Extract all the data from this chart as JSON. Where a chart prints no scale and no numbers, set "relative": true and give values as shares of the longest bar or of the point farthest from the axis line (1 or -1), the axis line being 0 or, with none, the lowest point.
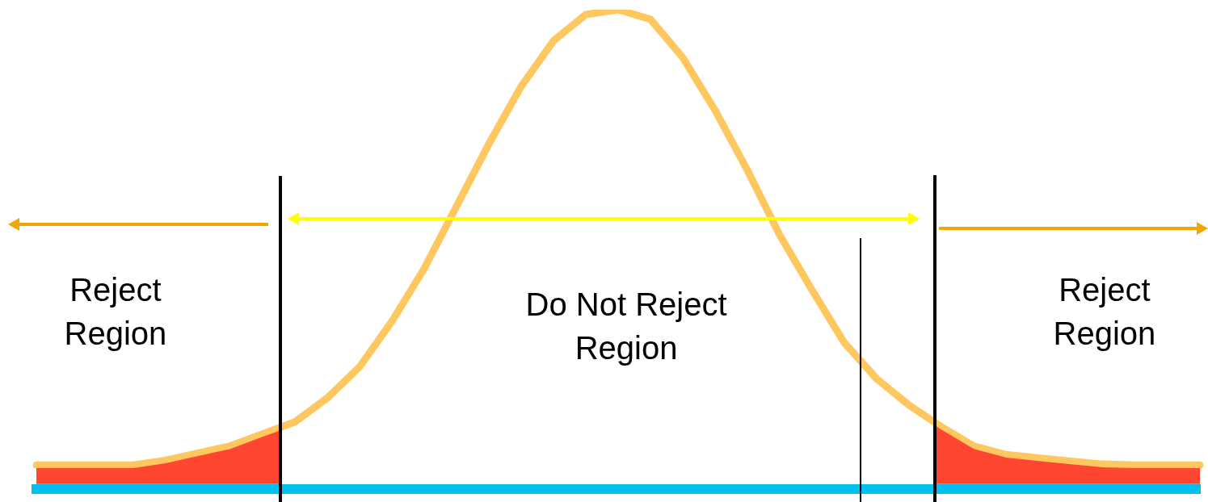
{
  "chart_data": {
    "type": "line",
    "relative": true,
    "categories": [
      null,
      null,
      null,
      null,
      null,
      null,
      null,
      null,
      null,
      null,
      null,
      null,
      null,
      null,
      null,
      null,
      null,
      null,
      null,
      null,
      null,
      null,
      null,
      null,
      null,
      null,
      null,
      null,
      null,
      null,
      null,
      null,
      null,
      null,
      null,
      null,
      null
    ],
    "series": [
      {
        "color": "#ffc75f",
        "values": [
          0.05,
          0.05,
          0.05,
          0.05,
          0.06,
          0.075,
          0.09,
          0.115,
          0.14,
          0.19,
          0.255,
          0.35,
          0.46,
          0.59,
          0.72,
          0.84,
          0.935,
          0.99,
          1.0,
          0.98,
          0.9,
          0.79,
          0.665,
          0.53,
          0.415,
          0.305,
          0.23,
          0.175,
          0.13,
          0.09,
          0.072,
          0.065,
          0.058,
          0.052,
          0.05,
          0.05,
          0.05
        ]
      }
    ],
    "annotations": [
      "Reject Region",
      "Do Not Reject Region",
      "Reject Region"
    ]
  }
}
